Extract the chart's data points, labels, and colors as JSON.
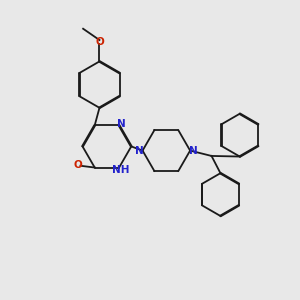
{
  "bg_color": "#e8e8e8",
  "bond_color": "#1a1a1a",
  "n_color": "#2222cc",
  "o_color": "#cc2200",
  "lw": 1.3,
  "dbo": 0.018,
  "fs": 7.5,
  "xlim": [
    0,
    10
  ],
  "ylim": [
    0,
    10
  ]
}
